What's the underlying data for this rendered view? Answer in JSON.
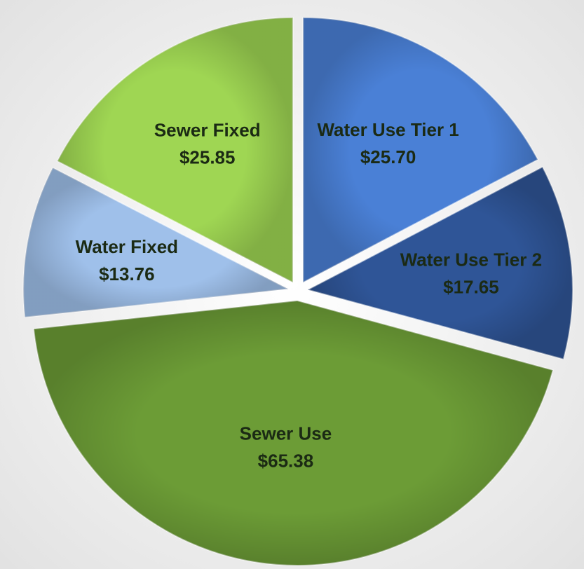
{
  "chart_data": {
    "type": "pie",
    "categories": [
      "Water Use Tier 1",
      "Water Use Tier 2",
      "Sewer Use",
      "Water Fixed",
      "Sewer Fixed"
    ],
    "values": [
      25.7,
      17.65,
      65.38,
      13.76,
      25.85
    ],
    "value_labels": [
      "$25.70",
      "$17.65",
      "$65.38",
      "$13.76",
      "$25.85"
    ],
    "colors": [
      "#4a80d6",
      "#2f5597",
      "#6c9c36",
      "#9fc0ea",
      "#9fd653"
    ]
  }
}
